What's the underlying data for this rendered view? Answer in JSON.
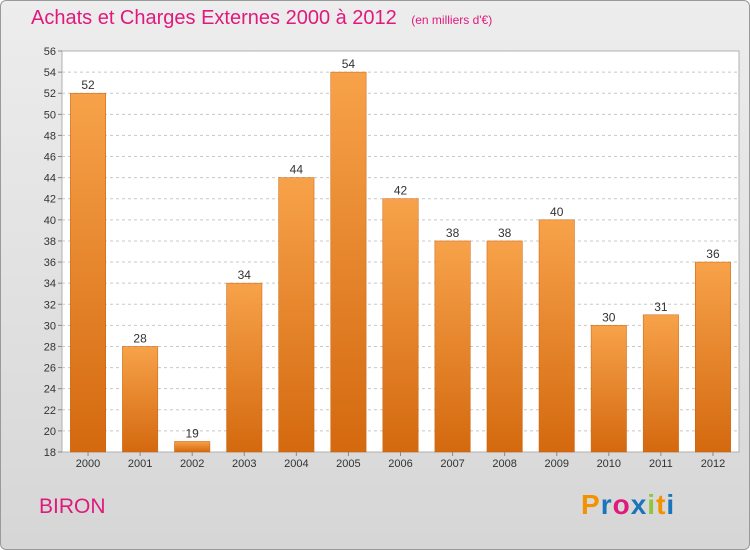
{
  "header": {
    "title": "Achats et Charges Externes 2000 à 2012",
    "unit_note": "(en milliers d'€)"
  },
  "footer": {
    "commune": "BIRON",
    "logo": {
      "letters": [
        "P",
        "r",
        "o",
        "x",
        "i",
        "t",
        "i"
      ],
      "colors": [
        "#f39200",
        "#1a75bb",
        "#e0197d",
        "#1a75bb",
        "#8dc63f",
        "#f39200",
        "#1a75bb"
      ]
    }
  },
  "colors": {
    "accent": "#e0197d",
    "bar_light": "#f7a24a",
    "bar_dark": "#d4690f",
    "bar_edge": "#c9600a"
  },
  "chart_data": {
    "type": "bar",
    "title": "Achats et Charges Externes 2000 à 2012",
    "categories": [
      "2000",
      "2001",
      "2002",
      "2003",
      "2004",
      "2005",
      "2006",
      "2007",
      "2008",
      "2009",
      "2010",
      "2011",
      "2012"
    ],
    "values": [
      52,
      28,
      19,
      34,
      44,
      54,
      42,
      38,
      38,
      40,
      30,
      31,
      36
    ],
    "ylim": [
      18,
      56
    ],
    "y_ticks": [
      18,
      20,
      22,
      24,
      26,
      28,
      30,
      32,
      34,
      36,
      38,
      40,
      42,
      44,
      46,
      48,
      50,
      52,
      54,
      56
    ],
    "grid": "horizontal dashed",
    "legend": "none"
  }
}
